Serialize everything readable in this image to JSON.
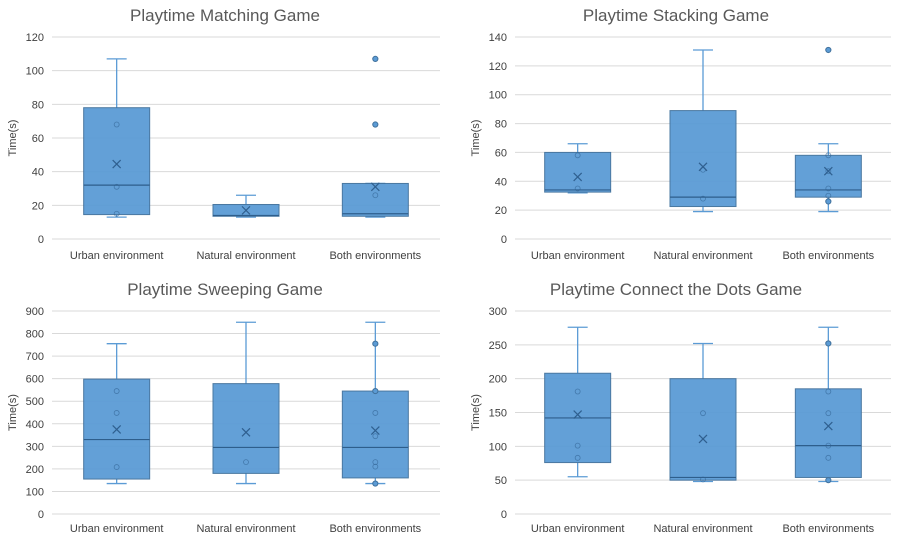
{
  "chart_data": [
    {
      "type": "box",
      "title": "Playtime Matching Game",
      "ylabel": "Time(s)",
      "ylim": [
        0,
        120
      ],
      "yticks": [
        0,
        20,
        40,
        60,
        80,
        100,
        120
      ],
      "categories": [
        "Urban environment",
        "Natural environment",
        "Both environments"
      ],
      "boxes": [
        {
          "min": 13,
          "q1": 14.5,
          "median": 32,
          "q3": 78,
          "max": 107,
          "mean": 44.5,
          "points": [
            15,
            31,
            68
          ],
          "outliers": []
        },
        {
          "min": 13,
          "q1": 13.5,
          "median": 14,
          "q3": 20.5,
          "max": 26,
          "mean": 17,
          "points": [],
          "outliers": []
        },
        {
          "min": 13,
          "q1": 13.5,
          "median": 15,
          "q3": 33,
          "max": 33,
          "mean": 31,
          "points": [
            26
          ],
          "outliers": [
            68,
            107
          ]
        }
      ]
    },
    {
      "type": "box",
      "title": "Playtime Stacking Game",
      "ylabel": "Time(s)",
      "ylim": [
        0,
        140
      ],
      "yticks": [
        0,
        20,
        40,
        60,
        80,
        100,
        120,
        140
      ],
      "categories": [
        "Urban environment",
        "Natural environment",
        "Both environments"
      ],
      "boxes": [
        {
          "min": 32,
          "q1": 32.5,
          "median": 34,
          "q3": 60,
          "max": 66,
          "mean": 43,
          "points": [
            35,
            58
          ],
          "outliers": []
        },
        {
          "min": 19,
          "q1": 22.5,
          "median": 29,
          "q3": 89,
          "max": 131,
          "mean": 50,
          "points": [
            28,
            48
          ],
          "outliers": []
        },
        {
          "min": 19,
          "q1": 29,
          "median": 34,
          "q3": 58,
          "max": 66,
          "mean": 47,
          "points": [
            30,
            35,
            47,
            58
          ],
          "outliers": [
            26,
            131
          ]
        }
      ]
    },
    {
      "type": "box",
      "title": "Playtime Sweeping Game",
      "ylabel": "Time(s)",
      "ylim": [
        0,
        900
      ],
      "yticks": [
        0,
        100,
        200,
        300,
        400,
        500,
        600,
        700,
        800,
        900
      ],
      "categories": [
        "Urban environment",
        "Natural environment",
        "Both environments"
      ],
      "boxes": [
        {
          "min": 135,
          "q1": 155,
          "median": 330,
          "q3": 598,
          "max": 755,
          "mean": 375,
          "points": [
            208,
            448,
            545
          ],
          "outliers": []
        },
        {
          "min": 135,
          "q1": 180,
          "median": 295,
          "q3": 578,
          "max": 850,
          "mean": 362,
          "points": [
            230
          ],
          "outliers": []
        },
        {
          "min": 135,
          "q1": 160,
          "median": 295,
          "q3": 545,
          "max": 850,
          "mean": 370,
          "points": [
            210,
            230,
            345,
            448
          ],
          "outliers": [
            135,
            545,
            755
          ]
        }
      ]
    },
    {
      "type": "box",
      "title": "Playtime Connect the Dots Game",
      "ylabel": "Time(s)",
      "ylim": [
        0,
        300
      ],
      "yticks": [
        0,
        50,
        100,
        150,
        200,
        250,
        300
      ],
      "categories": [
        "Urban environment",
        "Natural environment",
        "Both environments"
      ],
      "boxes": [
        {
          "min": 55,
          "q1": 76,
          "median": 142,
          "q3": 208,
          "max": 276,
          "mean": 147,
          "points": [
            83,
            101,
            181
          ],
          "outliers": []
        },
        {
          "min": 48,
          "q1": 50,
          "median": 54,
          "q3": 200,
          "max": 252,
          "mean": 111,
          "points": [
            51,
            149
          ],
          "outliers": []
        },
        {
          "min": 48,
          "q1": 54,
          "median": 101,
          "q3": 185,
          "max": 276,
          "mean": 130,
          "points": [
            83,
            101,
            149,
            181
          ],
          "outliers": [
            50,
            252
          ]
        }
      ]
    }
  ]
}
